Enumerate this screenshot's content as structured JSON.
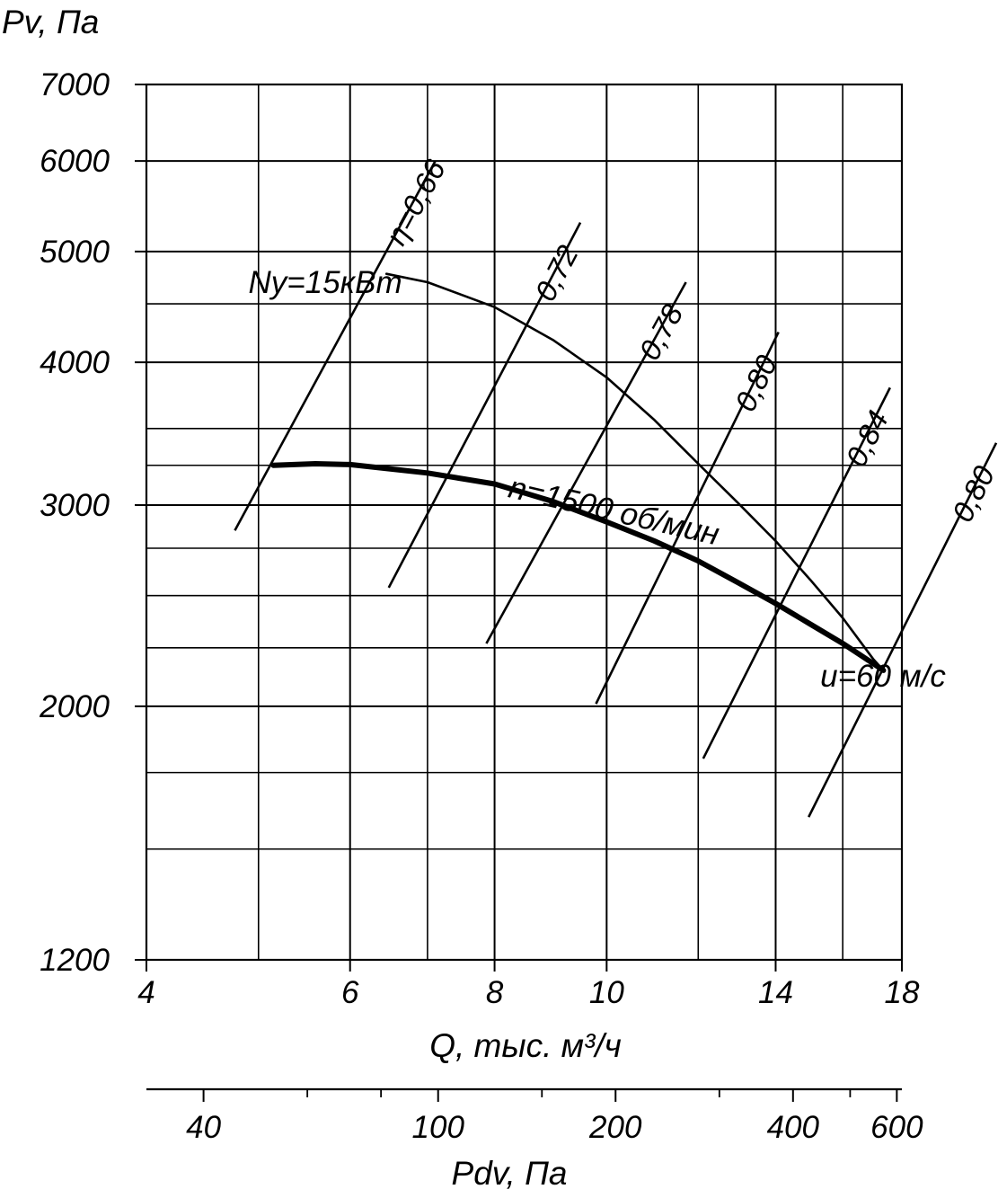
{
  "chart_data": {
    "type": "line",
    "y_axis_title": "Pv, Па",
    "x_axis_title": "Q, тыс. м³/ч",
    "x2_axis_title": "Pdv, Па",
    "scale": "log-log",
    "xlim": [
      4,
      18
    ],
    "ylim": [
      1200,
      7000
    ],
    "y_ticks": [
      {
        "v": 7000,
        "label": "7000"
      },
      {
        "v": 6000,
        "label": "6000"
      },
      {
        "v": 5000,
        "label": "5000"
      },
      {
        "v": 4000,
        "label": "4000"
      },
      {
        "v": 3000,
        "label": "3000"
      },
      {
        "v": 2000,
        "label": "2000"
      },
      {
        "v": 1200,
        "label": "1200"
      }
    ],
    "y_minor_grid": [
      4500,
      3500,
      3250,
      2750,
      2500,
      2250,
      1750,
      1500
    ],
    "x_ticks": [
      {
        "v": 4,
        "label": "4"
      },
      {
        "v": 6,
        "label": "6"
      },
      {
        "v": 8,
        "label": "8"
      },
      {
        "v": 10,
        "label": "10"
      },
      {
        "v": 14,
        "label": "14"
      },
      {
        "v": 18,
        "label": "18"
      }
    ],
    "x_minor_grid": [
      5,
      7,
      12,
      16
    ],
    "pdv_scale": {
      "range": [
        32,
        612
      ],
      "major": [
        {
          "v": 40,
          "label": "40"
        },
        {
          "v": 100,
          "label": "100"
        },
        {
          "v": 200,
          "label": "200"
        },
        {
          "v": 400,
          "label": "400"
        },
        {
          "v": 600,
          "label": "600"
        }
      ],
      "minor": [
        60,
        80,
        150,
        300,
        500
      ]
    },
    "efficiency_lines": [
      {
        "label": "η=0,66",
        "from": [
          4.77,
          2850
        ],
        "to": [
          7.11,
          6000
        ]
      },
      {
        "label": "0,72",
        "from": [
          6.48,
          2540
        ],
        "to": [
          9.49,
          5300
        ]
      },
      {
        "label": "0,78",
        "from": [
          7.87,
          2270
        ],
        "to": [
          11.71,
          4700
        ]
      },
      {
        "label": "0,80",
        "from": [
          9.79,
          2010
        ],
        "to": [
          14.08,
          4250
        ]
      },
      {
        "label": "0,84",
        "from": [
          12.12,
          1800
        ],
        "to": [
          17.58,
          3800
        ]
      },
      {
        "label": "0,80",
        "from": [
          14.95,
          1600
        ],
        "to": [
          21.72,
          3400
        ]
      }
    ],
    "series": [
      {
        "name": "n=1500 об/мин",
        "label_position": [
          8.2,
          3050
        ],
        "label_angle": 13,
        "x": [
          5.15,
          5.6,
          6.0,
          7.0,
          8.0,
          9.0,
          10.0,
          11.0,
          12.0,
          13.0,
          14.0,
          15.0,
          16.0,
          17.0,
          17.35
        ],
        "y": [
          3250,
          3260,
          3255,
          3200,
          3130,
          3020,
          2900,
          2790,
          2680,
          2565,
          2460,
          2360,
          2270,
          2180,
          2150
        ]
      },
      {
        "name": "Ny=15кВт",
        "label_position": [
          4.9,
          4600
        ],
        "label_angle": 0,
        "x": [
          6.45,
          7.0,
          8.0,
          9.0,
          10.0,
          11.0,
          12.0,
          13.0,
          14.0,
          15.0,
          16.0,
          17.0,
          17.35
        ],
        "y": [
          4780,
          4700,
          4470,
          4180,
          3880,
          3560,
          3260,
          3010,
          2790,
          2580,
          2390,
          2200,
          2150
        ]
      }
    ],
    "annotations": [
      {
        "text": "u=60 м/с",
        "at": [
          15.3,
          2080
        ]
      }
    ]
  }
}
